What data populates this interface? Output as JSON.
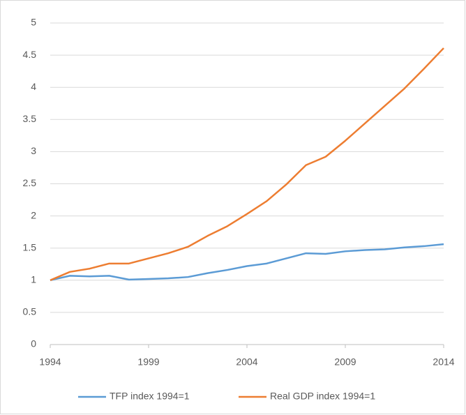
{
  "chart_data": {
    "type": "line",
    "x": [
      1994,
      1995,
      1996,
      1997,
      1998,
      1999,
      2000,
      2001,
      2002,
      2003,
      2004,
      2005,
      2006,
      2007,
      2008,
      2009,
      2010,
      2011,
      2012,
      2013,
      2014
    ],
    "series": [
      {
        "name": "TFP index 1994=1",
        "color": "#5b9bd5",
        "values": [
          1.0,
          1.07,
          1.06,
          1.07,
          1.01,
          1.02,
          1.03,
          1.05,
          1.11,
          1.16,
          1.22,
          1.26,
          1.34,
          1.42,
          1.41,
          1.45,
          1.47,
          1.48,
          1.51,
          1.53,
          1.56
        ]
      },
      {
        "name": "Real GDP index 1994=1",
        "color": "#ed7d31",
        "values": [
          1.0,
          1.13,
          1.18,
          1.26,
          1.26,
          1.34,
          1.42,
          1.52,
          1.69,
          1.84,
          2.03,
          2.23,
          2.49,
          2.79,
          2.92,
          3.17,
          3.44,
          3.71,
          3.98,
          4.29,
          4.61
        ]
      }
    ],
    "xlim": [
      1994,
      2014
    ],
    "xticks": [
      1994,
      1999,
      2004,
      2009,
      2014
    ],
    "ylim": [
      0,
      5
    ],
    "yticks": [
      0,
      0.5,
      1,
      1.5,
      2,
      2.5,
      3,
      3.5,
      4,
      4.5,
      5
    ],
    "grid": true,
    "legend": "bottom"
  }
}
